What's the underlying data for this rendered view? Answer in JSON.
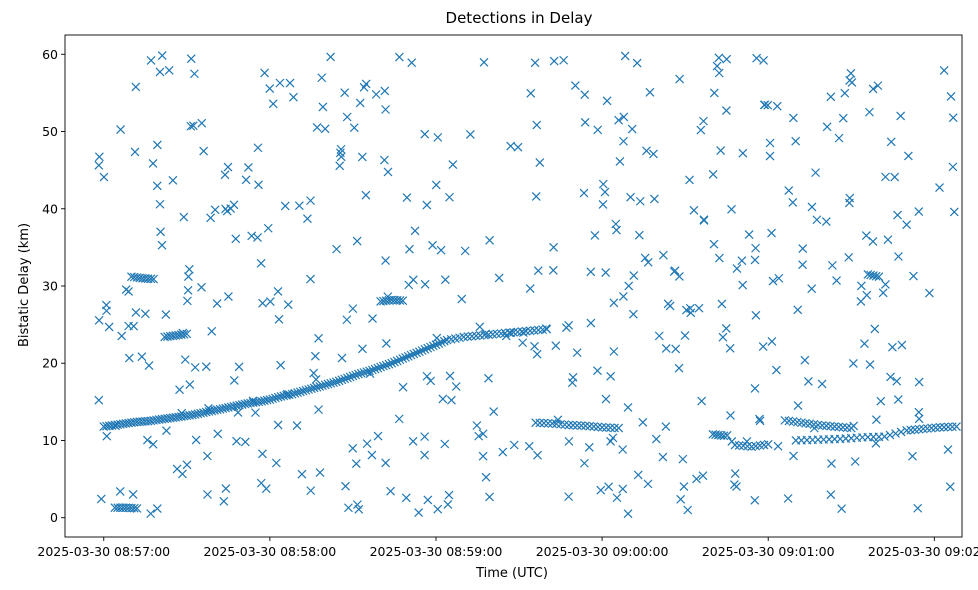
{
  "chart_data": {
    "type": "scatter",
    "title": "Detections in Delay",
    "xlabel": "Time (UTC)",
    "ylabel": "Bistatic Delay (km)",
    "x_unit": "datetime (UTC)",
    "xlim": [
      "2025-03-30 08:56:46",
      "2025-03-30 09:02:10"
    ],
    "ylim": [
      -2.5,
      62.5
    ],
    "x_ticks": [
      "2025-03-30 08:57:00",
      "2025-03-30 08:58:00",
      "2025-03-30 08:59:00",
      "2025-03-30 09:00:00",
      "2025-03-30 09:01:00",
      "2025-03-30 09:02:00"
    ],
    "y_ticks": [
      0,
      10,
      20,
      30,
      40,
      50,
      60
    ],
    "grid": false,
    "legend": "none",
    "marker": "x",
    "color": "#1f77b4",
    "series": [
      {
        "track_points": [
          [
            "2025-03-30 08:57:00",
            11.8
          ],
          [
            "2025-03-30 08:57:04",
            12.0
          ],
          [
            "2025-03-30 08:57:08",
            12.2
          ],
          [
            "2025-03-30 08:57:12",
            12.4
          ],
          [
            "2025-03-30 08:57:16",
            12.5
          ],
          [
            "2025-03-30 08:57:20",
            12.7
          ],
          [
            "2025-03-30 08:57:24",
            12.9
          ],
          [
            "2025-03-30 08:57:28",
            13.1
          ],
          [
            "2025-03-30 08:57:32",
            13.3
          ],
          [
            "2025-03-30 08:57:36",
            13.6
          ],
          [
            "2025-03-30 08:57:40",
            13.9
          ],
          [
            "2025-03-30 08:57:44",
            14.2
          ],
          [
            "2025-03-30 08:57:48",
            14.5
          ],
          [
            "2025-03-30 08:57:52",
            14.8
          ],
          [
            "2025-03-30 08:57:56",
            15.0
          ],
          [
            "2025-03-30 08:58:00",
            15.3
          ],
          [
            "2025-03-30 08:58:04",
            15.7
          ],
          [
            "2025-03-30 08:58:08",
            16.0
          ],
          [
            "2025-03-30 08:58:12",
            16.4
          ],
          [
            "2025-03-30 08:58:16",
            16.8
          ],
          [
            "2025-03-30 08:58:20",
            17.2
          ],
          [
            "2025-03-30 08:58:24",
            17.6
          ],
          [
            "2025-03-30 08:58:28",
            18.1
          ],
          [
            "2025-03-30 08:58:32",
            18.6
          ],
          [
            "2025-03-30 08:58:36",
            19.0
          ],
          [
            "2025-03-30 08:58:40",
            19.5
          ],
          [
            "2025-03-30 08:58:44",
            20.0
          ],
          [
            "2025-03-30 08:58:48",
            20.6
          ],
          [
            "2025-03-30 08:58:52",
            21.2
          ],
          [
            "2025-03-30 08:58:56",
            21.8
          ],
          [
            "2025-03-30 08:59:00",
            22.4
          ],
          [
            "2025-03-30 08:59:04",
            23.0
          ],
          [
            "2025-03-30 08:59:10",
            23.4
          ],
          [
            "2025-03-30 08:59:16",
            23.6
          ],
          [
            "2025-03-30 08:59:22",
            23.8
          ],
          [
            "2025-03-30 08:59:28",
            24.0
          ],
          [
            "2025-03-30 08:59:34",
            24.2
          ],
          [
            "2025-03-30 08:59:40",
            24.4
          ],
          [
            "2025-03-30 08:59:36",
            12.3
          ],
          [
            "2025-03-30 08:59:42",
            12.2
          ],
          [
            "2025-03-30 08:59:48",
            12.0
          ],
          [
            "2025-03-30 08:59:54",
            11.9
          ],
          [
            "2025-03-30 09:00:00",
            11.7
          ],
          [
            "2025-03-30 09:00:06",
            11.6
          ],
          [
            "2025-03-30 09:00:48",
            9.4
          ],
          [
            "2025-03-30 09:00:54",
            9.2
          ],
          [
            "2025-03-30 09:01:00",
            9.5
          ],
          [
            "2025-03-30 09:01:06",
            12.6
          ],
          [
            "2025-03-30 09:01:12",
            12.3
          ],
          [
            "2025-03-30 09:01:18",
            12.0
          ],
          [
            "2025-03-30 09:01:24",
            11.8
          ],
          [
            "2025-03-30 09:01:30",
            11.6
          ],
          [
            "2025-03-30 09:01:10",
            10.0
          ],
          [
            "2025-03-30 09:01:18",
            10.1
          ],
          [
            "2025-03-30 09:01:26",
            10.2
          ],
          [
            "2025-03-30 09:01:34",
            10.4
          ],
          [
            "2025-03-30 09:01:42",
            10.5
          ],
          [
            "2025-03-30 09:01:50",
            11.3
          ],
          [
            "2025-03-30 09:01:56",
            11.5
          ],
          [
            "2025-03-30 09:02:02",
            11.7
          ],
          [
            "2025-03-30 09:02:08",
            11.8
          ],
          [
            "2025-03-30 08:57:10",
            31.2
          ],
          [
            "2025-03-30 08:57:14",
            31.0
          ],
          [
            "2025-03-30 08:57:18",
            30.9
          ],
          [
            "2025-03-30 08:57:22",
            23.4
          ],
          [
            "2025-03-30 08:57:26",
            23.6
          ],
          [
            "2025-03-30 08:57:30",
            23.8
          ],
          [
            "2025-03-30 08:58:40",
            28.0
          ],
          [
            "2025-03-30 08:58:44",
            28.2
          ],
          [
            "2025-03-30 08:58:48",
            28.1
          ],
          [
            "2025-03-30 08:57:04",
            1.3
          ],
          [
            "2025-03-30 08:57:08",
            1.3
          ],
          [
            "2025-03-30 08:57:12",
            1.2
          ],
          [
            "2025-03-30 09:00:40",
            10.8
          ],
          [
            "2025-03-30 09:00:44",
            10.6
          ],
          [
            "2025-03-30 09:01:36",
            31.5
          ],
          [
            "2025-03-30 09:01:40",
            31.2
          ]
        ]
      }
    ],
    "background_clutter": {
      "count": 480,
      "x_range": [
        "2025-03-30 08:56:58",
        "2025-03-30 09:02:08"
      ],
      "y_range": [
        0.5,
        60.0
      ],
      "seed": 7
    }
  }
}
